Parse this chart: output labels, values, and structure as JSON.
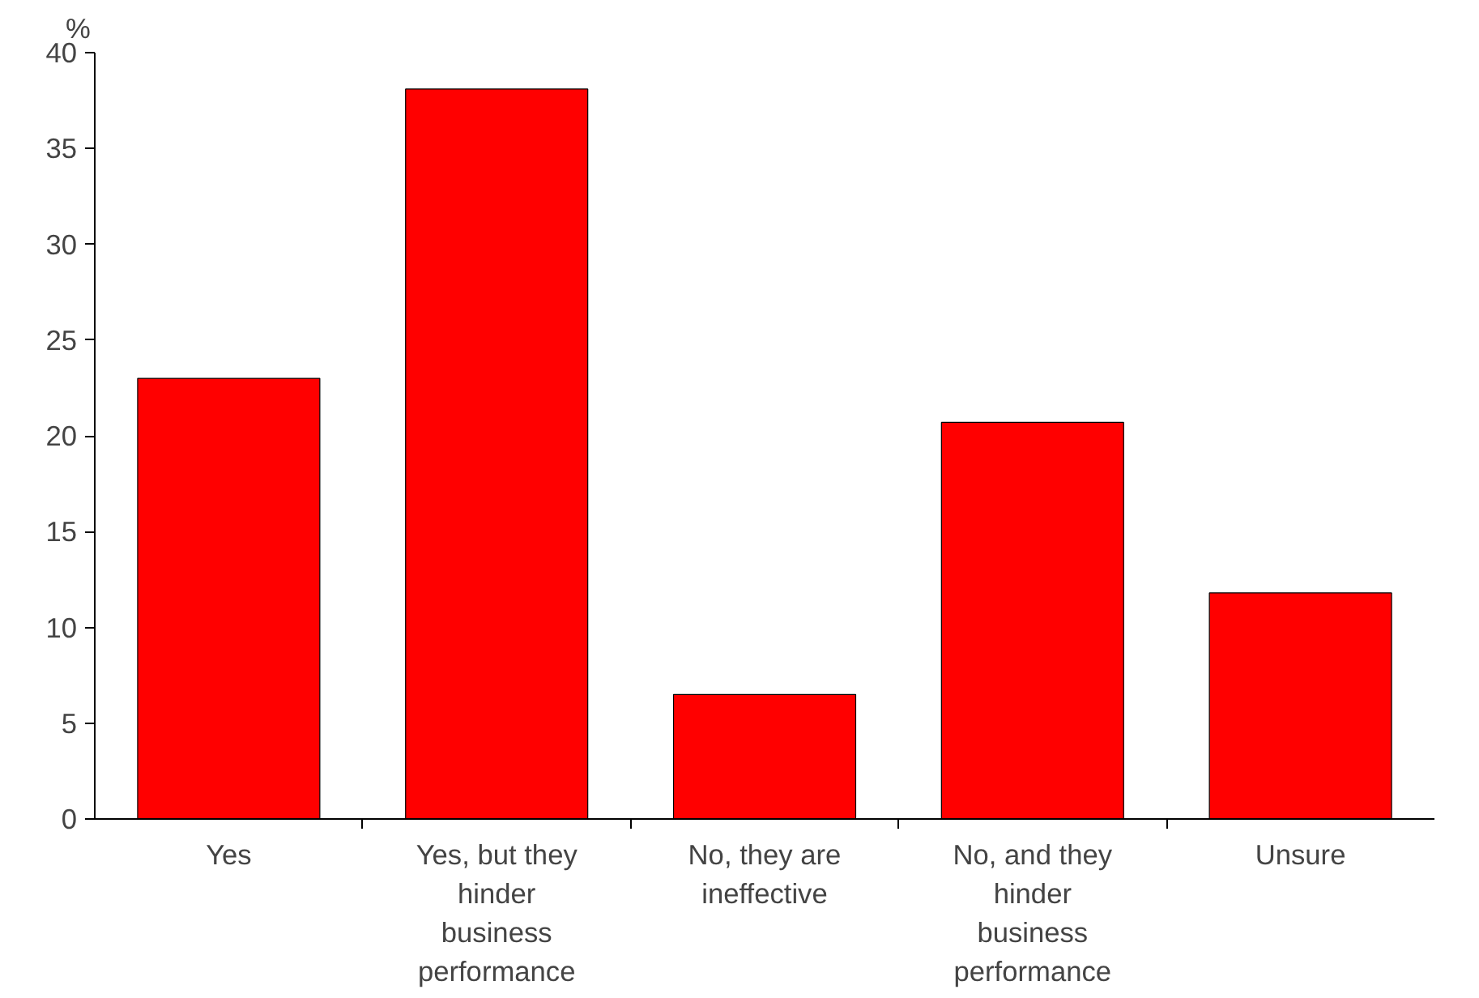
{
  "chart_data": {
    "type": "bar",
    "ylabel": "%",
    "categories": [
      "Yes",
      "Yes, but they hinder business performance",
      "No, they are ineffective",
      "No, and they hinder business performance",
      "Unsure"
    ],
    "values": [
      23,
      38.1,
      6.5,
      20.7,
      11.8
    ],
    "color": "#ff0000",
    "ylim": [
      0,
      40
    ],
    "yticks": [
      0,
      5,
      10,
      15,
      20,
      25,
      30,
      35,
      40
    ],
    "grid": false
  }
}
